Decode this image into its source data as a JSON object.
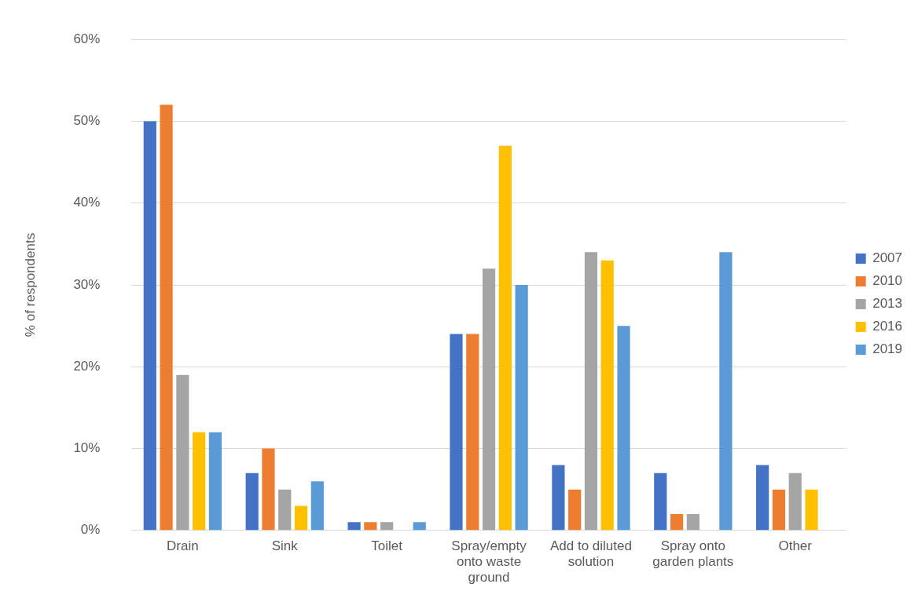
{
  "chart_data": {
    "type": "bar",
    "ylabel": "% of respondents",
    "categories": [
      "Drain",
      "Sink",
      "Toilet",
      "Spray/empty onto waste ground",
      "Add to diluted solution",
      "Spray onto garden plants",
      "Other"
    ],
    "series": [
      {
        "name": "2007",
        "color": "#4472c4",
        "values": [
          50,
          7,
          1,
          24,
          8,
          7,
          8
        ]
      },
      {
        "name": "2010",
        "color": "#ed7d31",
        "values": [
          52,
          10,
          1,
          24,
          5,
          2,
          5
        ]
      },
      {
        "name": "2013",
        "color": "#a5a5a5",
        "values": [
          19,
          5,
          1,
          32,
          34,
          2,
          7
        ]
      },
      {
        "name": "2016",
        "color": "#ffc000",
        "values": [
          12,
          3,
          0,
          47,
          33,
          0,
          5
        ]
      },
      {
        "name": "2019",
        "color": "#5b9bd5",
        "values": [
          12,
          6,
          1,
          30,
          25,
          34,
          0
        ]
      }
    ],
    "ylim": [
      0,
      60
    ],
    "yticks": [
      {
        "value": 0,
        "label": "0%"
      },
      {
        "value": 10,
        "label": "10%"
      },
      {
        "value": 20,
        "label": "20%"
      },
      {
        "value": 30,
        "label": "30%"
      },
      {
        "value": 40,
        "label": "40%"
      },
      {
        "value": 50,
        "label": "50%"
      },
      {
        "value": 60,
        "label": "60%"
      }
    ],
    "grid": "y",
    "legend": "right"
  }
}
